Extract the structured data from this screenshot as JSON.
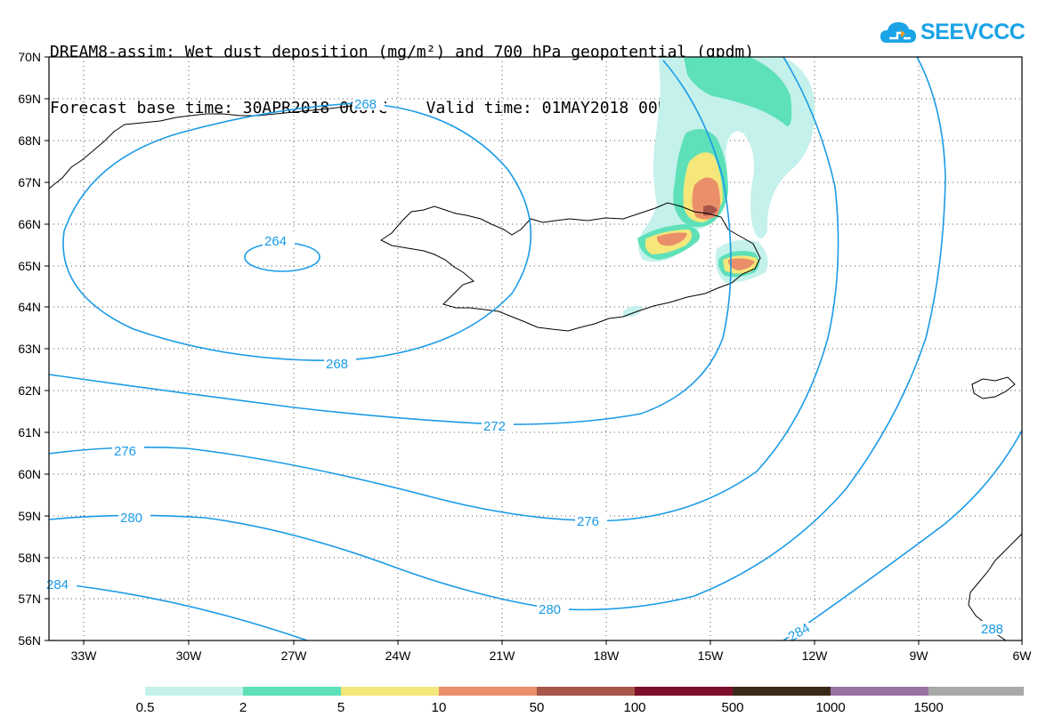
{
  "title": {
    "line1": "DREAM8-assim: Wet dust deposition (mg/m²) and 700 hPa geopotential (gpdm)",
    "line2": "Forecast base time: 30APR2018 00UTC    Valid time: 01MAY2018 00UTC"
  },
  "logo": {
    "text": "SEEVCCC",
    "icon": "cloud-icon",
    "color": "#1aa3e6"
  },
  "map": {
    "lat_labels": [
      "70N",
      "69N",
      "68N",
      "67N",
      "66N",
      "65N",
      "64N",
      "63N",
      "62N",
      "61N",
      "60N",
      "59N",
      "58N",
      "57N",
      "56N"
    ],
    "lon_labels": [
      "33W",
      "30W",
      "27W",
      "24W",
      "21W",
      "18W",
      "15W",
      "12W",
      "9W",
      "6W"
    ],
    "contour_color": "#1a9be6",
    "contour_labels": [
      "268",
      "264",
      "268",
      "272",
      "276",
      "276",
      "280",
      "280",
      "284",
      "284",
      "288"
    ]
  },
  "legend": {
    "colors": [
      "#c4f1eb",
      "#5ee0b9",
      "#f5e77a",
      "#ea8f6a",
      "#a8554a",
      "#7c0f2a",
      "#3a2918",
      "#9a73a4",
      "#a8a8a8"
    ],
    "labels": [
      "0.5",
      "2",
      "5",
      "10",
      "50",
      "100",
      "500",
      "1000",
      "1500"
    ]
  }
}
